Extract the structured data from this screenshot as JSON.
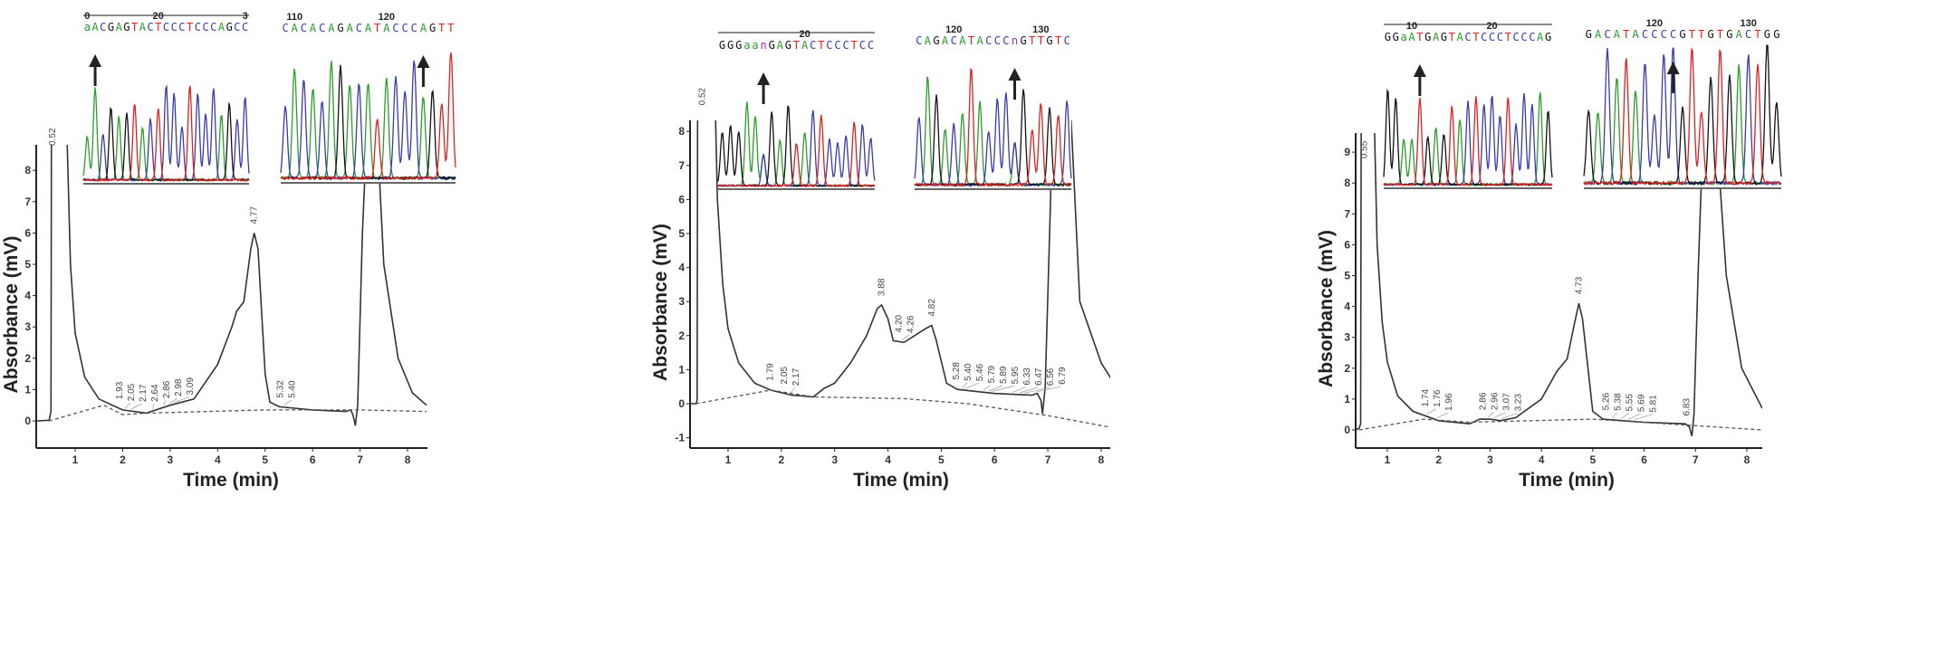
{
  "chart_data": [
    {
      "type": "line",
      "xlabel": "Time (min)",
      "ylabel": "Absorbance (mV)",
      "xlim": [
        0.2,
        8.4
      ],
      "ylim": [
        -0.9,
        8.8
      ],
      "xticks": [
        "1",
        "2",
        "3",
        "4",
        "5",
        "6",
        "7",
        "8"
      ],
      "yticks": [
        "0",
        "1",
        "2",
        "3",
        "4",
        "5",
        "6",
        "7",
        "8"
      ],
      "series": [
        {
          "style": "solid",
          "color": "#333333",
          "points": [
            [
              0.2,
              0
            ],
            [
              0.45,
              0.02
            ],
            [
              0.49,
              0.3
            ],
            [
              0.5,
              9.5
            ],
            [
              0.82,
              9.5
            ],
            [
              0.9,
              5
            ],
            [
              1.0,
              2.8
            ],
            [
              1.2,
              1.4
            ],
            [
              1.5,
              0.7
            ],
            [
              2.0,
              0.35
            ],
            [
              2.5,
              0.25
            ],
            [
              2.7,
              0.35
            ],
            [
              3.0,
              0.5
            ],
            [
              3.5,
              0.7
            ],
            [
              4.0,
              1.8
            ],
            [
              4.3,
              3.0
            ],
            [
              4.4,
              3.5
            ],
            [
              4.55,
              3.8
            ],
            [
              4.7,
              5.5
            ],
            [
              4.77,
              6.0
            ],
            [
              4.85,
              5.5
            ],
            [
              5.0,
              1.5
            ],
            [
              5.1,
              0.6
            ],
            [
              5.3,
              0.45
            ],
            [
              6.0,
              0.35
            ],
            [
              6.7,
              0.3
            ],
            [
              6.8,
              0.35
            ],
            [
              6.85,
              0.2
            ],
            [
              6.9,
              -0.15
            ],
            [
              6.95,
              0.5
            ],
            [
              7.05,
              6
            ],
            [
              7.15,
              9.5
            ],
            [
              7.35,
              9.5
            ],
            [
              7.5,
              5
            ],
            [
              7.8,
              2
            ],
            [
              8.1,
              0.9
            ],
            [
              8.4,
              0.5
            ]
          ]
        },
        {
          "style": "dashed",
          "color": "#555555",
          "points": [
            [
              0.45,
              0
            ],
            [
              1.6,
              0.5
            ],
            [
              2.0,
              0.2
            ],
            [
              2.5,
              0.25
            ],
            [
              5.0,
              0.35
            ],
            [
              7.0,
              0.35
            ],
            [
              8.4,
              0.3
            ]
          ]
        }
      ],
      "peak_labels": [
        "0.52",
        "1.93",
        "2.05",
        "2.17",
        "2.64",
        "2.86",
        "2.98",
        "3.09",
        "4.77",
        "5.32",
        "5.40"
      ],
      "insets": [
        {
          "ruler": [
            {
              "label": "0",
              "at": 0
            },
            {
              "label": "20",
              "at": 9
            },
            {
              "label": "3",
              "at": 20
            }
          ],
          "ruler_line": true,
          "bases": [
            "a",
            "A",
            "C",
            "G",
            "A",
            "G",
            "T",
            "A",
            "C",
            "T",
            "C",
            "C",
            "C",
            "T",
            "C",
            "C",
            "C",
            "A",
            "G",
            "C",
            "C"
          ],
          "arrow_at": 1
        },
        {
          "ruler": [
            {
              "label": "110",
              "at": 1
            },
            {
              "label": "120",
              "at": 11
            }
          ],
          "ruler_line": false,
          "bases": [
            "C",
            "A",
            "C",
            "A",
            "C",
            "A",
            "G",
            "A",
            "C",
            "A",
            "T",
            "A",
            "C",
            "C",
            "C",
            "A",
            "G",
            "T",
            "T"
          ],
          "arrow_at": 15
        }
      ]
    },
    {
      "type": "line",
      "xlabel": "Time (min)",
      "ylabel": "Absorbance (mV)",
      "xlim": [
        0.3,
        8.2
      ],
      "ylim": [
        -1.3,
        8.3
      ],
      "xticks": [
        "1",
        "2",
        "3",
        "4",
        "5",
        "6",
        "7",
        "8"
      ],
      "yticks": [
        "-1",
        "0",
        "1",
        "2",
        "3",
        "4",
        "5",
        "6",
        "7",
        "8"
      ],
      "series": [
        {
          "style": "solid",
          "color": "#333333",
          "points": [
            [
              0.3,
              0
            ],
            [
              0.4,
              0
            ],
            [
              0.42,
              0.1
            ],
            [
              0.43,
              9.5
            ],
            [
              0.75,
              9.5
            ],
            [
              0.8,
              6
            ],
            [
              0.9,
              3.5
            ],
            [
              1.0,
              2.2
            ],
            [
              1.2,
              1.2
            ],
            [
              1.5,
              0.6
            ],
            [
              1.8,
              0.4
            ],
            [
              2.2,
              0.25
            ],
            [
              2.6,
              0.2
            ],
            [
              2.8,
              0.45
            ],
            [
              3.0,
              0.6
            ],
            [
              3.3,
              1.2
            ],
            [
              3.6,
              2.0
            ],
            [
              3.8,
              2.8
            ],
            [
              3.88,
              2.9
            ],
            [
              4.0,
              2.5
            ],
            [
              4.1,
              1.85
            ],
            [
              4.3,
              1.8
            ],
            [
              4.5,
              2.0
            ],
            [
              4.7,
              2.2
            ],
            [
              4.82,
              2.3
            ],
            [
              4.9,
              1.9
            ],
            [
              5.1,
              0.6
            ],
            [
              5.3,
              0.42
            ],
            [
              6.0,
              0.3
            ],
            [
              6.7,
              0.25
            ],
            [
              6.8,
              0.3
            ],
            [
              6.87,
              0.1
            ],
            [
              6.9,
              -0.3
            ],
            [
              6.95,
              0.5
            ],
            [
              7.05,
              6
            ],
            [
              7.1,
              9.5
            ],
            [
              7.4,
              9.5
            ],
            [
              7.6,
              3
            ],
            [
              8.0,
              1.2
            ],
            [
              8.2,
              0.7
            ]
          ]
        },
        {
          "style": "dashed",
          "color": "#555555",
          "points": [
            [
              0.4,
              0
            ],
            [
              1.8,
              0.4
            ],
            [
              2.6,
              0.2
            ],
            [
              4.3,
              0.15
            ],
            [
              5.5,
              0
            ],
            [
              7.0,
              -0.35
            ],
            [
              8.2,
              -0.7
            ]
          ]
        }
      ],
      "peak_labels": [
        "0.52",
        "1.79",
        "2.05",
        "2.17",
        "3.88",
        "4.20",
        "4.26",
        "4.82",
        "5.28",
        "5.40",
        "5.46",
        "5.79",
        "5.89",
        "5.95",
        "6.33",
        "6.47",
        "6.56",
        "6.79"
      ],
      "insets": [
        {
          "ruler": [
            {
              "label": "20",
              "at": 10
            }
          ],
          "ruler_line": true,
          "bases": [
            "G",
            "G",
            "G",
            "a",
            "a",
            "n",
            "G",
            "A",
            "G",
            "T",
            "A",
            "C",
            "T",
            "C",
            "C",
            "C",
            "T",
            "C",
            "C"
          ],
          "arrow_at": 5
        },
        {
          "ruler": [
            {
              "label": "120",
              "at": 4
            },
            {
              "label": "130",
              "at": 14
            }
          ],
          "ruler_line": false,
          "bases": [
            "C",
            "A",
            "G",
            "A",
            "C",
            "A",
            "T",
            "A",
            "C",
            "C",
            "C",
            "n",
            "G",
            "T",
            "T",
            "G",
            "T",
            "C"
          ],
          "arrow_at": 11
        }
      ]
    },
    {
      "type": "line",
      "xlabel": "Time (min)",
      "ylabel": "Absorbance (mV)",
      "xlim": [
        0.38,
        8.3
      ],
      "ylim": [
        -0.6,
        9.6
      ],
      "xticks": [
        "1",
        "2",
        "3",
        "4",
        "5",
        "6",
        "7",
        "8"
      ],
      "yticks": [
        "0",
        "1",
        "2",
        "3",
        "4",
        "5",
        "6",
        "7",
        "8",
        "9"
      ],
      "series": [
        {
          "style": "solid",
          "color": "#333333",
          "points": [
            [
              0.38,
              0
            ],
            [
              0.45,
              0.05
            ],
            [
              0.48,
              0.2
            ],
            [
              0.49,
              9.8
            ],
            [
              0.75,
              9.8
            ],
            [
              0.8,
              6
            ],
            [
              0.9,
              3.5
            ],
            [
              1.0,
              2.2
            ],
            [
              1.2,
              1.1
            ],
            [
              1.5,
              0.6
            ],
            [
              2.0,
              0.3
            ],
            [
              2.6,
              0.2
            ],
            [
              2.8,
              0.35
            ],
            [
              3.0,
              0.35
            ],
            [
              3.2,
              0.3
            ],
            [
              3.5,
              0.4
            ],
            [
              4.0,
              1.0
            ],
            [
              4.3,
              1.9
            ],
            [
              4.5,
              2.3
            ],
            [
              4.65,
              3.5
            ],
            [
              4.73,
              4.1
            ],
            [
              4.8,
              3.6
            ],
            [
              5.0,
              0.6
            ],
            [
              5.2,
              0.35
            ],
            [
              6.0,
              0.25
            ],
            [
              6.8,
              0.2
            ],
            [
              6.88,
              0.1
            ],
            [
              6.93,
              -0.2
            ],
            [
              6.97,
              0.5
            ],
            [
              7.05,
              5
            ],
            [
              7.15,
              9.8
            ],
            [
              7.4,
              9.8
            ],
            [
              7.6,
              5
            ],
            [
              7.9,
              2
            ],
            [
              8.3,
              0.7
            ]
          ]
        },
        {
          "style": "dashed",
          "color": "#555555",
          "points": [
            [
              0.45,
              0
            ],
            [
              1.7,
              0.35
            ],
            [
              2.6,
              0.25
            ],
            [
              5.0,
              0.35
            ],
            [
              6.9,
              0.15
            ],
            [
              8.3,
              0
            ]
          ]
        }
      ],
      "peak_labels": [
        "0.55",
        "1.74",
        "1.76",
        "1.96",
        "2.86",
        "2.96",
        "3.07",
        "3.23",
        "4.73",
        "5.26",
        "5.38",
        "5.55",
        "5.69",
        "5.81",
        "6.83"
      ],
      "insets": [
        {
          "ruler": [
            {
              "label": "10",
              "at": 3
            },
            {
              "label": "20",
              "at": 13
            }
          ],
          "ruler_line": true,
          "bases": [
            "G",
            "G",
            "a",
            "A",
            "T",
            "G",
            "A",
            "G",
            "T",
            "A",
            "C",
            "T",
            "C",
            "C",
            "C",
            "T",
            "C",
            "C",
            "C",
            "A",
            "G"
          ],
          "arrow_at": 4
        },
        {
          "ruler": [
            {
              "label": "120",
              "at": 7
            },
            {
              "label": "130",
              "at": 17
            }
          ],
          "ruler_line": false,
          "bases": [
            "G",
            "A",
            "C",
            "A",
            "T",
            "A",
            "C",
            "C",
            "C",
            "C",
            "G",
            "T",
            "T",
            "G",
            "T",
            "G",
            "A",
            "C",
            "T",
            "G",
            "G"
          ],
          "arrow_at": 9
        }
      ]
    }
  ],
  "base_colors": {
    "A": "#2aa02a",
    "C": "#3a3ab0",
    "G": "#111111",
    "T": "#e02020",
    "N": "#9b30b0"
  }
}
